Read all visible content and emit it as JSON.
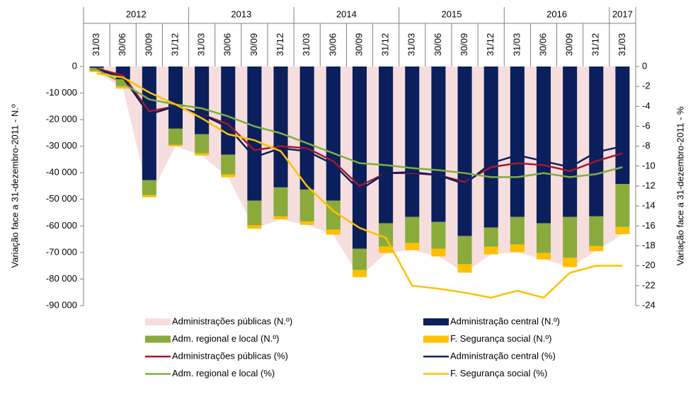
{
  "chart_data": {
    "type": "bar",
    "stacked": true,
    "categories": [
      "31/03",
      "30/06",
      "30/09",
      "31/12",
      "31/03",
      "30/06",
      "30/09",
      "31/12",
      "31/03",
      "30/06",
      "30/09",
      "31/12",
      "31/03",
      "30/06",
      "30/09",
      "31/12",
      "31/03",
      "30/06",
      "30/09",
      "31/12",
      "31/03"
    ],
    "years": [
      "2012",
      "2013",
      "2014",
      "2015",
      "2016",
      "2017"
    ],
    "y_label": "Variação  face a 31-dezembro-2011  - N.º",
    "y2_label": "Variação face a 31-dezembro-2011 - %",
    "ylim": [
      -90000,
      0
    ],
    "yticks": [
      0,
      {
        "value": -10000,
        "label": "-10 000"
      },
      {
        "value": -20000,
        "label": "-20 000"
      },
      {
        "value": -30000,
        "label": "-30 000"
      },
      {
        "value": -40000,
        "label": "-40 000"
      },
      {
        "value": -50000,
        "label": "-50 000"
      },
      {
        "value": -60000,
        "label": "-60 000"
      },
      {
        "value": -70000,
        "label": "-70 000"
      },
      {
        "value": -80000,
        "label": "-80 000"
      },
      {
        "value": -90000,
        "label": "-90 000"
      }
    ],
    "y2lim": [
      -24,
      0
    ],
    "y2ticks": [
      0,
      -2,
      -4,
      -6,
      -8,
      -10,
      -12,
      -14,
      -16,
      -18,
      -20,
      -22,
      -24
    ],
    "series": [
      {
        "name": "Administrações públicas (N.º)",
        "type": "area",
        "color": "#f7dede",
        "values": [
          -2100,
          -8300,
          -49200,
          -30000,
          -33500,
          -41700,
          -61100,
          -57500,
          -59600,
          -63300,
          -79300,
          -70200,
          -69100,
          -71500,
          -77600,
          -70700,
          -69900,
          -72600,
          -75500,
          -69500,
          -63100
        ]
      },
      {
        "name": "Administração central (N.º)",
        "type": "bar",
        "color": "#0b1f5c",
        "values": [
          -500,
          -4800,
          -42800,
          -23400,
          -25500,
          -33200,
          -50500,
          -45500,
          -46300,
          -50500,
          -68600,
          -59000,
          -56600,
          -58500,
          -63800,
          -60600,
          -56600,
          -59000,
          -56600,
          -56400,
          -44200
        ]
      },
      {
        "name": "Adm. regional e local (N.º)",
        "type": "bar",
        "color": "#8aab3c",
        "values": [
          -1100,
          -2700,
          -5600,
          -6100,
          -7200,
          -7400,
          -9300,
          -10900,
          -12000,
          -10900,
          -8000,
          -8800,
          -9800,
          -10100,
          -10600,
          -7200,
          -10400,
          -11200,
          -15400,
          -11200,
          -16200
        ]
      },
      {
        "name": "F. Segurança social  (N.º)",
        "type": "bar",
        "color": "#ffc000",
        "values": [
          -500,
          -800,
          -800,
          -500,
          -800,
          -1100,
          -1300,
          -1100,
          -1300,
          -1900,
          -2700,
          -2400,
          -2700,
          -2900,
          -3200,
          -2900,
          -2900,
          -2400,
          -3500,
          -1900,
          -2700
        ]
      },
      {
        "name": "Administrações públicas (%)",
        "type": "line",
        "axis": "y2",
        "color": "#a3182c",
        "values": [
          -0.2,
          -0.9,
          -4.5,
          -4.0,
          -4.8,
          -5.8,
          -8.4,
          -8.0,
          -8.2,
          -9.5,
          -12.0,
          -10.7,
          -10.7,
          -10.9,
          -11.6,
          -10.1,
          -9.7,
          -9.9,
          -10.5,
          -9.5,
          -8.7
        ]
      },
      {
        "name": "Administração central  (%)",
        "type": "line",
        "axis": "y2",
        "color": "#0c1f5e",
        "values": [
          -0.3,
          -1.1,
          -4.8,
          -4.0,
          -4.8,
          -6.1,
          -9.1,
          -8.2,
          -8.5,
          -9.8,
          -12.4,
          -10.7,
          -10.6,
          -10.9,
          -11.8,
          -9.7,
          -8.9,
          -9.5,
          -10.1,
          -8.6,
          -8.0
        ]
      },
      {
        "name": "Adm. regional e local (%)",
        "type": "line",
        "axis": "y2",
        "color": "#7fad43",
        "values": [
          -0.3,
          -1.7,
          -3.3,
          -3.8,
          -4.2,
          -5.0,
          -6.0,
          -6.7,
          -7.7,
          -8.7,
          -9.7,
          -9.9,
          -10.2,
          -10.4,
          -10.7,
          -11.1,
          -11.1,
          -10.7,
          -11.1,
          -10.8,
          -10.1
        ]
      },
      {
        "name": "F. Segurança social  (%)",
        "type": "line",
        "axis": "y2",
        "color": "#ffc000",
        "values": [
          -0.7,
          -1.1,
          -2.6,
          -3.8,
          -5.2,
          -6.8,
          -7.4,
          -8.5,
          -12.0,
          -14.5,
          -16.2,
          -17.2,
          -22.0,
          -22.3,
          -22.7,
          -23.2,
          -22.5,
          -23.2,
          -20.7,
          -20.0,
          -20.0
        ]
      }
    ]
  }
}
